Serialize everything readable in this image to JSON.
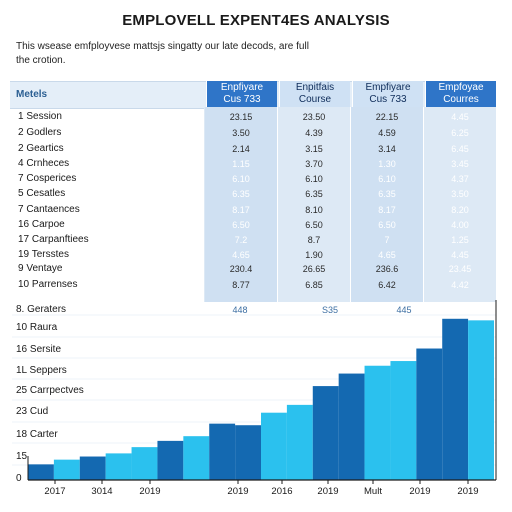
{
  "title": "EMPLOVELL EXPENT4ES ANALYSIS",
  "subtitle": "This wsease emfployvese mattsjs singatty our late decods, are full the crotion.",
  "table": {
    "header_label": "Metels",
    "columns": [
      "Enpfiyare\nCus 733",
      "Enpitfais\nCourse",
      "Empfiyare\nCus 733",
      "Empfoyae\nCourres"
    ],
    "rows": [
      {
        "label": "1  Session",
        "values": [
          "23.15",
          "23.50",
          "22.15",
          "4.45"
        ]
      },
      {
        "label": "2  Godlers",
        "values": [
          "3.50",
          "4.39",
          "4.59",
          "6.25"
        ]
      },
      {
        "label": "2  Geartics",
        "values": [
          "2.14",
          "3.15",
          "3.14",
          "6.45"
        ]
      },
      {
        "label": "4  Crnheces",
        "values": [
          "1.15",
          "3.70",
          "1.30",
          "3.45"
        ]
      },
      {
        "label": "7  Cosperices",
        "values": [
          "6.10",
          "6.10",
          "6.10",
          "4.37"
        ]
      },
      {
        "label": "5  Cesatles",
        "values": [
          "6.35",
          "6.35",
          "6.35",
          "3.50"
        ]
      },
      {
        "label": "7  Cantaences",
        "values": [
          "8.17",
          "8.10",
          "8.17",
          "8.20"
        ]
      },
      {
        "label": "16  Carpoe",
        "values": [
          "6.50",
          "6.50",
          "6.50",
          "4.00"
        ]
      },
      {
        "label": "17  Carpanftiees",
        "values": [
          "7.2",
          "8.7",
          "7",
          "1.25"
        ]
      },
      {
        "label": "19  Tersstes",
        "values": [
          "4.65",
          "1.90",
          "4.65",
          "4.45"
        ]
      },
      {
        "label": "9  Ventaye",
        "values": [
          "230.4",
          "26.65",
          "236.6",
          "23.45"
        ]
      },
      {
        "label": "10  Parrenses",
        "values": [
          "8.77",
          "6.85",
          "6.42",
          "4.42"
        ]
      }
    ]
  },
  "chart_data": {
    "type": "bar",
    "categories": [
      "2017",
      "3014",
      "2019",
      "2019",
      "2016",
      "2019",
      "Mult",
      "2019",
      "2019"
    ],
    "series": [
      {
        "values": [
          1.0,
          1.5,
          2.1,
          2.8,
          3.5,
          4.8,
          6.8,
          7.6,
          10.3
        ]
      },
      {
        "values": [
          1.3,
          1.7,
          2.5,
          3.6,
          4.3,
          6.0,
          7.3,
          8.4,
          10.2
        ]
      }
    ],
    "y_tick_labels": [
      "0",
      "15",
      "18  Carter",
      "23  Cud",
      "25  Carrpectves",
      "1L  Seppers",
      "16  Sersite",
      "10  Raura",
      "8.  Geraters"
    ],
    "bar_label": "448",
    "bar_label2": "S35",
    "bar_label3": "445",
    "colors": {
      "dark": "#1469b1",
      "light": "#2bc1ee",
      "axis": "#1c1c1c",
      "header_dark": "#2f75c8"
    },
    "ylim": [
      0,
      11.5
    ]
  }
}
